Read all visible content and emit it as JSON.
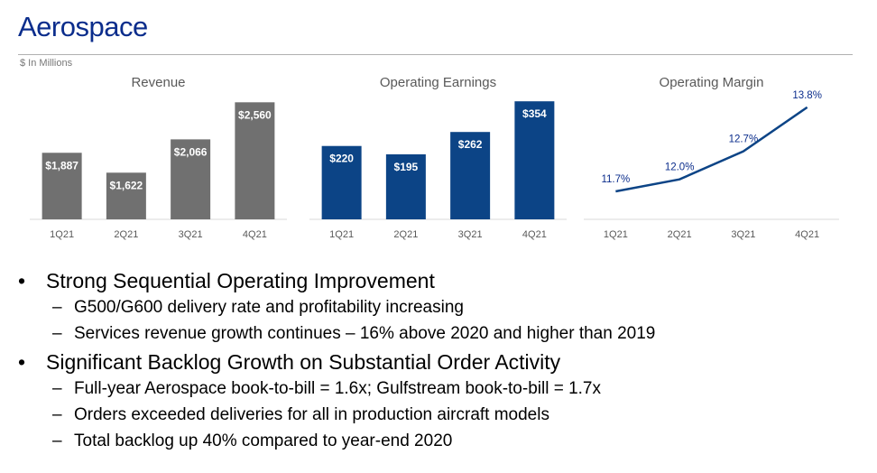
{
  "title": "Aerospace",
  "units": "$ In Millions",
  "colors": {
    "title": "#0b2d8c",
    "revenue_bar": "#707070",
    "earnings_bar": "#0c4486",
    "margin_line": "#0c4486"
  },
  "chart_data": [
    {
      "type": "bar",
      "title": "Revenue",
      "categories": [
        "1Q21",
        "2Q21",
        "3Q21",
        "4Q21"
      ],
      "values": [
        1887,
        1622,
        2066,
        2560
      ],
      "labels": [
        "$1,887",
        "$1,622",
        "$2,066",
        "$2,560"
      ],
      "ylim": [
        1000,
        2600
      ]
    },
    {
      "type": "bar",
      "title": "Operating Earnings",
      "categories": [
        "1Q21",
        "2Q21",
        "3Q21",
        "4Q21"
      ],
      "values": [
        220,
        195,
        262,
        354
      ],
      "labels": [
        "$220",
        "$195",
        "$262",
        "$354"
      ],
      "ylim": [
        0,
        360
      ]
    },
    {
      "type": "line",
      "title": "Operating Margin",
      "categories": [
        "1Q21",
        "2Q21",
        "3Q21",
        "4Q21"
      ],
      "values": [
        11.7,
        12.0,
        12.7,
        13.8
      ],
      "labels": [
        "11.7%",
        "12.0%",
        "12.7%",
        "13.8%"
      ],
      "ylim": [
        11.0,
        14.0
      ]
    }
  ],
  "bullets": [
    {
      "text": "Strong Sequential Operating Improvement",
      "subs": [
        "G500/G600 delivery rate and profitability increasing",
        "Services revenue growth continues – 16% above 2020 and higher than 2019"
      ]
    },
    {
      "text": "Significant Backlog Growth on Substantial Order Activity",
      "subs": [
        "Full-year Aerospace book-to-bill = 1.6x; Gulfstream book-to-bill = 1.7x",
        "Orders exceeded deliveries for all in production aircraft models",
        "Total backlog up 40% compared to year-end 2020"
      ]
    }
  ],
  "dash": "–"
}
